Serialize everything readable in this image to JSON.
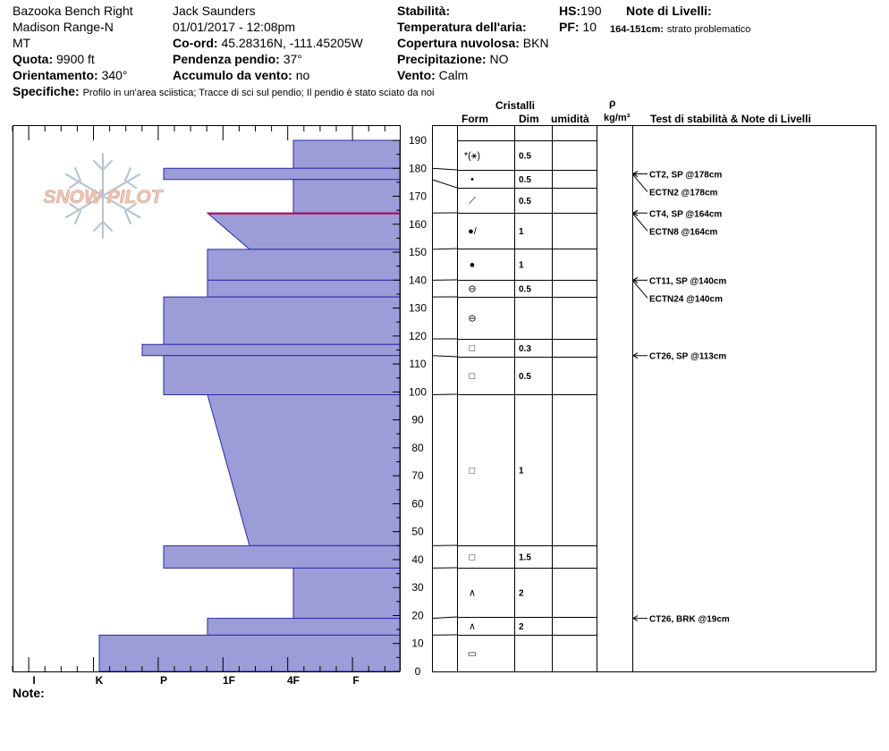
{
  "header": {
    "location": "Bazooka Bench Right",
    "range": "Madison Range-N",
    "state": "MT",
    "elevation_label": "Quota:",
    "elevation_value": "9900 ft",
    "aspect_label": "Orientamento:",
    "aspect_value": "340°",
    "observer": "Jack Saunders",
    "datetime": "01/01/2017 - 12:08pm",
    "coord_label": "Co-ord:",
    "coord_value": "45.28316N, -111.45205W",
    "slope_label": "Pendenza pendio:",
    "slope_value": "37°",
    "wind_load_label": "Accumulo da vento:",
    "wind_load_value": "no",
    "stability_label": "Stabilità:",
    "stability_value": "",
    "air_temp_label": "Temperatura dell'aria:",
    "air_temp_value": "",
    "sky_label": "Copertura nuvolosa:",
    "sky_value": "BKN",
    "precip_label": "Precipitazione:",
    "precip_value": "NO",
    "wind_label": "Vento:",
    "wind_value": "Calm",
    "hs_label": "HS:",
    "hs_value": "190",
    "pf_label": "PF:",
    "pf_value": "10",
    "layer_notes_label": "Note di Livelli:",
    "layer_note_range": "164-151cm:",
    "layer_note_text": "strato problematico",
    "specifics_label": "Specifiche:",
    "specifics_value": "Profilo in un'area sciistica; Tracce di sci sul pendio; Il pendio è stato sciato da noi",
    "note_label": "Note:"
  },
  "logo_text": "SNOW PILOT",
  "columns": {
    "crystals": "Cristalli",
    "form": "Form",
    "size": "Dim",
    "moisture": "umidità",
    "rho": "ρ",
    "density_unit": "kg/m³",
    "tests": "Test di stabilità & Note di Livelli"
  },
  "chart_data": {
    "type": "bar",
    "orientation": "horizontal",
    "x_axis_categories": [
      "I",
      "K",
      "P",
      "1F",
      "4F",
      "F"
    ],
    "y_axis": {
      "range": [
        0,
        190
      ],
      "ticks": [
        0,
        10,
        20,
        30,
        40,
        50,
        60,
        70,
        80,
        90,
        100,
        110,
        120,
        130,
        140,
        150,
        160,
        170,
        180,
        190
      ]
    },
    "hardness_layers": [
      {
        "bottom": 180,
        "top": 190,
        "hardness": "4F"
      },
      {
        "bottom": 176,
        "top": 180,
        "hardness": "P"
      },
      {
        "bottom": 164,
        "top": 176,
        "hardness": "4F"
      },
      {
        "bottom": 151,
        "top": 164,
        "hardness_top": "1F-",
        "hardness_bottom": "1F+"
      },
      {
        "bottom": 140,
        "top": 151,
        "hardness": "1F-"
      },
      {
        "bottom": 134,
        "top": 140,
        "hardness": "1F-"
      },
      {
        "bottom": 117,
        "top": 134,
        "hardness": "P"
      },
      {
        "bottom": 113,
        "top": 117,
        "hardness": "K+"
      },
      {
        "bottom": 99,
        "top": 113,
        "hardness": "P"
      },
      {
        "bottom": 45,
        "top": 99,
        "hardness_top": "1F-",
        "hardness_bottom": "1F+"
      },
      {
        "bottom": 37,
        "top": 45,
        "hardness": "P"
      },
      {
        "bottom": 19,
        "top": 37,
        "hardness": "4F"
      },
      {
        "bottom": 13,
        "top": 19,
        "hardness": "1F-"
      },
      {
        "bottom": 0,
        "top": 13,
        "hardness": "K"
      }
    ],
    "crystal_rows": [
      {
        "top": 190,
        "bottom": 180,
        "form": "*(⚹)",
        "size": "0.5"
      },
      {
        "top": 180,
        "bottom": 176,
        "form": "•",
        "size": "0.5"
      },
      {
        "top": 176,
        "bottom": 164,
        "form": "⟋",
        "size": "0.5"
      },
      {
        "top": 164,
        "bottom": 151,
        "form": "●/",
        "size": "1"
      },
      {
        "top": 151,
        "bottom": 140,
        "form": "●",
        "size": "1"
      },
      {
        "top": 140,
        "bottom": 134,
        "form": "⊖",
        "size": "0.5"
      },
      {
        "top": 134,
        "bottom": 119,
        "form": "⊖",
        "size": ""
      },
      {
        "top": 119,
        "bottom": 113,
        "form": "□",
        "size": "0.3"
      },
      {
        "top": 113,
        "bottom": 99,
        "form": "□",
        "size": "0.5"
      },
      {
        "top": 99,
        "bottom": 45,
        "form": "□",
        "size": "1"
      },
      {
        "top": 45,
        "bottom": 37,
        "form": "□",
        "size": "1.5"
      },
      {
        "top": 37,
        "bottom": 19,
        "form": "∧",
        "size": "2"
      },
      {
        "top": 19,
        "bottom": 13,
        "form": "∧",
        "size": "2"
      },
      {
        "top": 13,
        "bottom": 0,
        "form": "▭",
        "size": ""
      }
    ],
    "stability_tests": [
      {
        "height": 178,
        "text": "CT2, SP @178cm"
      },
      {
        "height": 178,
        "text": "ECTN2 @178cm"
      },
      {
        "height": 164,
        "text": "CT4, SP @164cm"
      },
      {
        "height": 164,
        "text": "ECTN8 @164cm"
      },
      {
        "height": 140,
        "text": "CT11, SP @140cm"
      },
      {
        "height": 140,
        "text": "ECTN24 @140cm"
      },
      {
        "height": 113,
        "text": "CT26, SP @113cm"
      },
      {
        "height": 19,
        "text": "CT26, BRK @19cm"
      }
    ],
    "problem_layer": {
      "top": 164,
      "bottom": 151,
      "marker_color": "#c0004e"
    },
    "colors": {
      "fill": "#9c9cd8",
      "stroke": "#2a2aa0",
      "axis": "#000000"
    }
  }
}
